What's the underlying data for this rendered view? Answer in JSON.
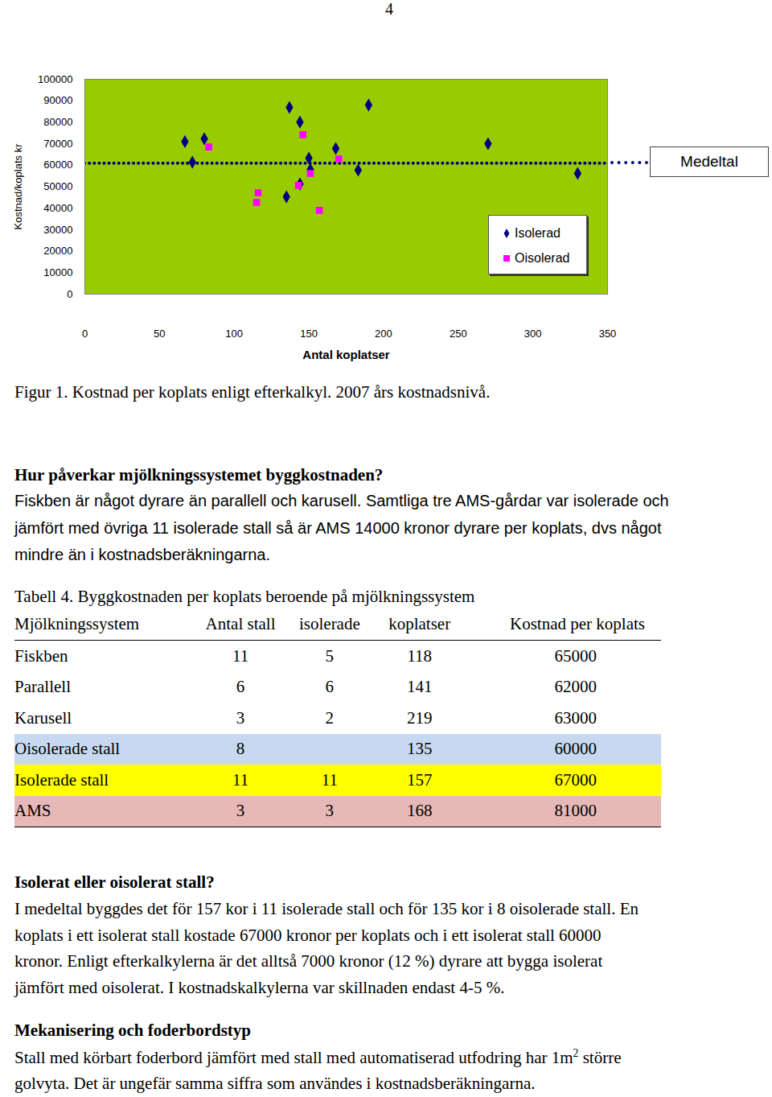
{
  "page_number": "4",
  "chart_data": {
    "type": "scatter",
    "x_label": "Antal koplatser",
    "y_label": "Kostnad/koplats kr",
    "xlim": [
      0,
      350
    ],
    "xticks": [
      0,
      50,
      100,
      150,
      200,
      250,
      300,
      350
    ],
    "ylim": [
      0,
      100000
    ],
    "yticks": [
      0,
      10000,
      20000,
      30000,
      40000,
      50000,
      60000,
      70000,
      80000,
      90000,
      100000
    ],
    "grid": false,
    "legend": "lower right",
    "series": [
      {
        "name": "Isolerad",
        "color": "#000080",
        "marker": "diamond",
        "x": [
          67,
          72,
          80,
          137,
          144,
          150,
          151,
          144,
          135,
          168,
          183,
          190,
          270,
          330
        ],
        "values": [
          71000,
          61400,
          72300,
          86900,
          80100,
          63300,
          58000,
          51300,
          45300,
          67800,
          57700,
          88000,
          70000,
          56200
        ]
      },
      {
        "name": "Oisolerad",
        "color": "#ff00ff",
        "marker": "square",
        "x": [
          83,
          116,
          115,
          146,
          143,
          151,
          157,
          170
        ],
        "values": [
          68500,
          47200,
          42700,
          74200,
          50600,
          56200,
          39000,
          62900
        ]
      }
    ],
    "reference_line": {
      "label": "Medeltal",
      "value": 61000,
      "color": "#000080",
      "line_style": "dotted"
    }
  },
  "caption": "Figur 1. Kostnad per koplats enligt efterkalkyl. 2007 års kostnadsnivå.",
  "section1": {
    "heading": "Hur påverkar mjölkningssystemet byggkostnaden?",
    "lines": [
      "Fiskben är något dyrare än parallell och karusell. Samtliga tre AMS-gårdar var isolerade och",
      "jämfört med övriga 11 isolerade stall så är AMS 14000 kronor dyrare per koplats, dvs något",
      "mindre än i kostnadsberäkningarna."
    ]
  },
  "table": {
    "title": "Tabell 4. Byggkostnaden per koplats beroende på mjölkningssystem",
    "header": [
      "Mjölkningssystem",
      "Antal stall",
      "isolerade",
      "koplatser",
      "Kostnad per koplats"
    ],
    "rows": [
      [
        "Fiskben",
        11,
        5,
        118,
        65000
      ],
      [
        "Parallell",
        6,
        6,
        141,
        62000
      ],
      [
        "Karusell",
        3,
        2,
        219,
        63000
      ],
      [
        "Oisolerade stall",
        8,
        null,
        135,
        60000
      ],
      [
        "Isolerade stall",
        11,
        11,
        157,
        67000
      ],
      [
        "AMS",
        3,
        3,
        168,
        81000
      ]
    ],
    "row_colors": [
      null,
      null,
      null,
      "#c6d9f1",
      "#ffff00",
      "#e6b9b8"
    ]
  },
  "section2": {
    "heading": "Isolerat eller oisolerat stall?",
    "lines": [
      "I medeltal byggdes det för 157 kor i 11 isolerade stall och för 135 kor i 8 oisolerade stall. En",
      "koplats i ett isolerat stall kostade 67000 kronor per koplats och i ett isolerat stall 60000",
      "kronor. Enligt efterkalkylerna är det alltså 7000 kronor (12 %) dyrare att bygga isolerat",
      "jämfört med oisolerat. I kostnadskalkylerna var skillnaden endast 4-5 %."
    ]
  },
  "section3": {
    "heading": "Mekanisering och foderbordstyp",
    "lines": [
      {
        "text": "Stall med körbart foderbord jämfört med stall med automatiserad utfodring har 1m",
        "sup": "2",
        "after": " större"
      },
      "golvyta. Det är ungefär samma siffra som användes i kostnadsberäkningarna."
    ]
  }
}
